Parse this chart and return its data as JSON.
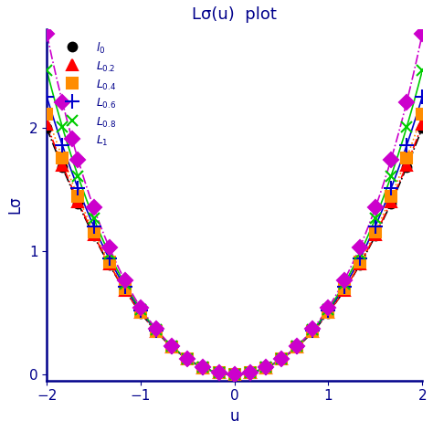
{
  "title": "Lσ(u)  plot",
  "xlabel": "u",
  "ylabel": "Lσ",
  "xlim": [
    -2,
    2
  ],
  "ylim": [
    -0.05,
    2.8
  ],
  "xticks": [
    -2,
    -1,
    0,
    1,
    2
  ],
  "yticks": [
    0,
    1,
    2
  ],
  "series": [
    {
      "sigma": 0.0,
      "color": "#000000",
      "linestyle": "-.",
      "marker": "o",
      "markersize": 7,
      "linewidth": 1.2,
      "legend_label": "l_{0}",
      "fillmarker": true
    },
    {
      "sigma": 0.2,
      "color": "#ff0000",
      "linestyle": "-.",
      "marker": "^",
      "markersize": 9,
      "linewidth": 1.2,
      "legend_label": "L_{0,2}",
      "fillmarker": true
    },
    {
      "sigma": 0.4,
      "color": "#ff8c00",
      "linestyle": ":",
      "marker": "s",
      "markersize": 9,
      "linewidth": 1.2,
      "legend_label": "L_{0,4}",
      "fillmarker": true
    },
    {
      "sigma": 0.6,
      "color": "#0000cd",
      "linestyle": "-",
      "marker": "+",
      "markersize": 11,
      "linewidth": 1.2,
      "legend_label": "L_{0,6}",
      "fillmarker": false
    },
    {
      "sigma": 0.8,
      "color": "#00cc00",
      "linestyle": "-",
      "marker": "x",
      "markersize": 9,
      "linewidth": 1.2,
      "legend_label": "L_{0,8}",
      "fillmarker": false
    },
    {
      "sigma": 1.0,
      "color": "#cc00cc",
      "linestyle": "-.",
      "marker": "D",
      "markersize": 8,
      "linewidth": 1.2,
      "legend_label": "L_{1}",
      "fillmarker": true
    }
  ],
  "n_points": 25,
  "background_color": "#ffffff",
  "axis_color": "#00008b",
  "title_fontsize": 13,
  "label_fontsize": 12,
  "tick_fontsize": 11
}
